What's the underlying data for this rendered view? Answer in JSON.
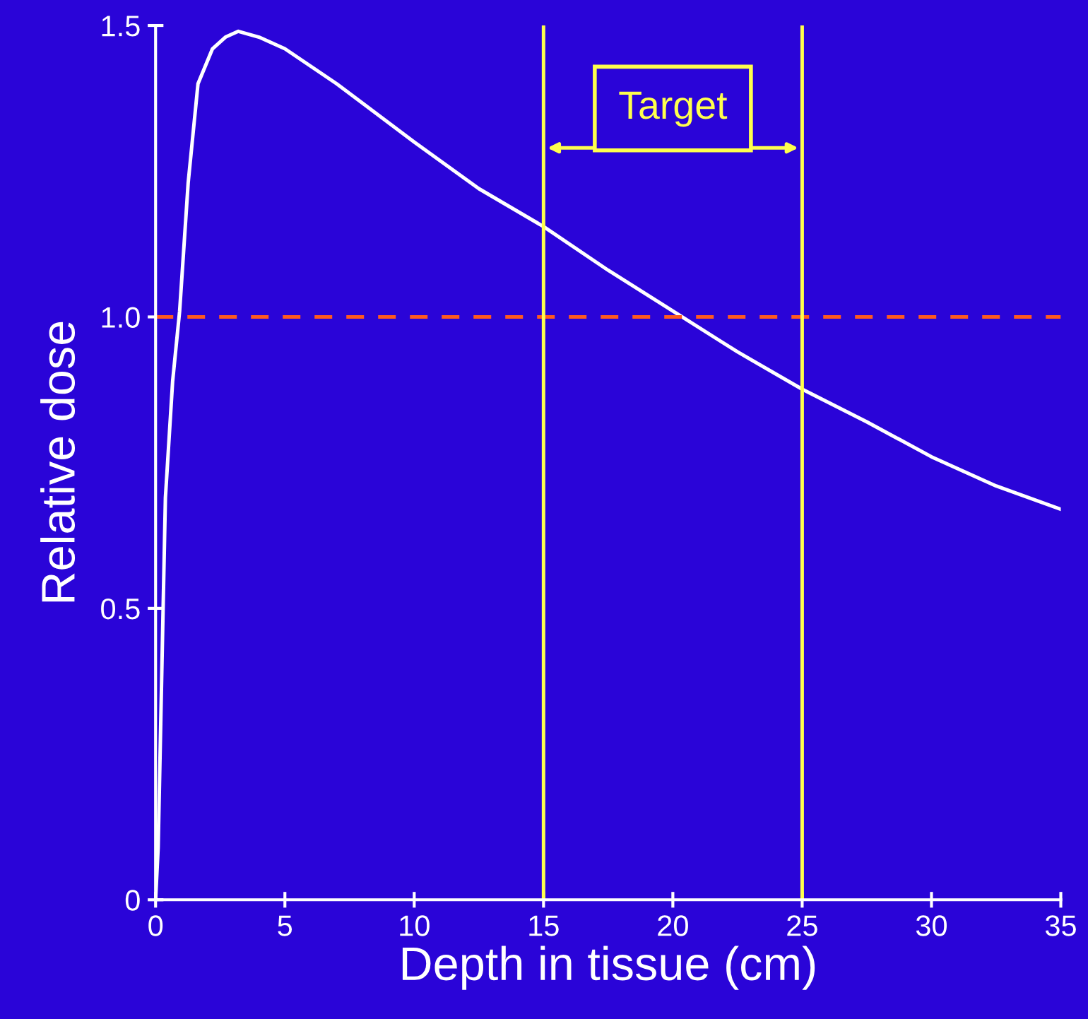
{
  "chart_data": {
    "type": "line",
    "xlabel": "Depth in tissue (cm)",
    "ylabel": "Relative dose",
    "x": [
      0,
      0.1,
      0.38,
      0.66,
      0.93,
      1.26,
      1.64,
      2.2,
      2.7,
      3.2,
      4,
      5,
      7,
      10,
      12.5,
      15,
      17.5,
      20,
      22.5,
      25,
      27.5,
      30,
      32.5,
      35
    ],
    "series": [
      {
        "color": "#ffffff",
        "values": [
          0,
          0.09,
          0.69,
          0.89,
          1.01,
          1.23,
          1.4,
          1.46,
          1.48,
          1.49,
          1.48,
          1.46,
          1.4,
          1.3,
          1.22,
          1.155,
          1.08,
          1.01,
          0.94,
          0.876,
          0.82,
          0.76,
          0.71,
          0.67
        ]
      }
    ],
    "xlim": [
      0,
      35
    ],
    "ylim": [
      0,
      1.5
    ],
    "xticks": [
      0,
      5,
      10,
      15,
      20,
      25,
      30,
      35
    ],
    "yticks": [
      0,
      0.5,
      {
        "value": 1,
        "label": "1.0"
      },
      1.5
    ],
    "ref_lines": [
      {
        "axis": "y",
        "value": 1,
        "color": "#ff5a1f",
        "line_style": "dashed"
      },
      {
        "axis": "x",
        "value": 15,
        "color": "#ffff4d"
      },
      {
        "axis": "x",
        "value": 25,
        "color": "#ffff4d"
      }
    ],
    "annotations": [
      "Target"
    ],
    "grid": false,
    "marker": "none",
    "line_style": "solid"
  }
}
